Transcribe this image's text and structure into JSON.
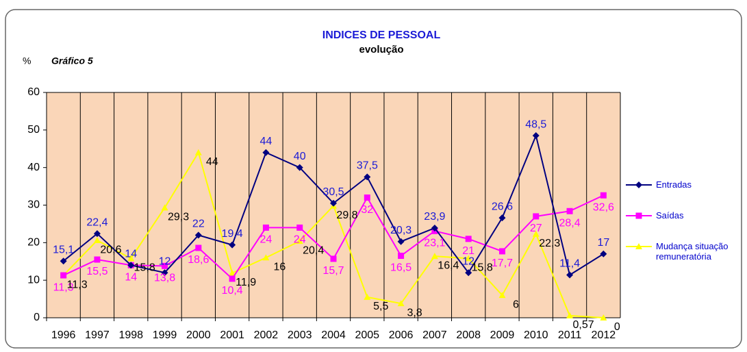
{
  "chart_data": {
    "type": "line",
    "title": "INDICES DE PESSOAL",
    "subtitle": "evolução",
    "y_axis_label": "%",
    "annotation": "Gráfico 5",
    "categories": [
      "1996",
      "1997",
      "1998",
      "1999",
      "2000",
      "2001",
      "2002",
      "2003",
      "2004",
      "2005",
      "2006",
      "2007",
      "2008",
      "2009",
      "2010",
      "2011",
      "2012"
    ],
    "ylim": [
      0,
      60
    ],
    "yticks": [
      0,
      10,
      20,
      30,
      40,
      50,
      60
    ],
    "grid": "vertical",
    "legend": "right",
    "series": [
      {
        "name": "Entradas",
        "color": "#000080",
        "label_color": "#1a1ad6",
        "marker": "diamond",
        "values": [
          15.1,
          22.4,
          14,
          12,
          22,
          19.4,
          44,
          40,
          30.5,
          37.5,
          20.3,
          23.9,
          12,
          26.6,
          48.5,
          11.4,
          17
        ],
        "value_labels": [
          "15,1",
          "22,4",
          "14",
          "12",
          "22",
          "19,4",
          "44",
          "40",
          "30,5",
          "37,5",
          "20,3",
          "23,9",
          "12",
          "26,6",
          "48,5",
          "11,4",
          "17"
        ]
      },
      {
        "name": "Saídas",
        "color": "#ff00ff",
        "label_color": "#ff00ff",
        "marker": "square",
        "values": [
          11.3,
          15.5,
          14,
          13.8,
          18.6,
          10.4,
          24,
          24,
          15.7,
          32,
          16.5,
          23.1,
          21,
          17.7,
          27,
          28.4,
          32.6
        ],
        "value_labels": [
          "11,3",
          "15,5",
          "14",
          "13,8",
          "18,6",
          "10,4",
          "24",
          "24",
          "15,7",
          "32",
          "16,5",
          "23,1",
          "21",
          "17,7",
          "27",
          "28,4",
          "32,6"
        ]
      },
      {
        "name": "Mudança situação remuneratória",
        "color": "#ffff00",
        "label_color": "#000000",
        "marker": "triangle",
        "values": [
          11.3,
          20.6,
          15.8,
          29.3,
          44,
          11.9,
          16,
          20.4,
          29.8,
          5.5,
          3.8,
          16.4,
          15.8,
          6,
          22.3,
          0.57,
          0
        ],
        "value_labels": [
          "11,3",
          "20,6",
          "15,8",
          "29,3",
          "44",
          "11,9",
          "16",
          "20,4",
          "29,8",
          "5,5",
          "3,8",
          "16,4",
          "15,8",
          "6",
          "22,3",
          "0,57",
          "0"
        ]
      }
    ]
  }
}
